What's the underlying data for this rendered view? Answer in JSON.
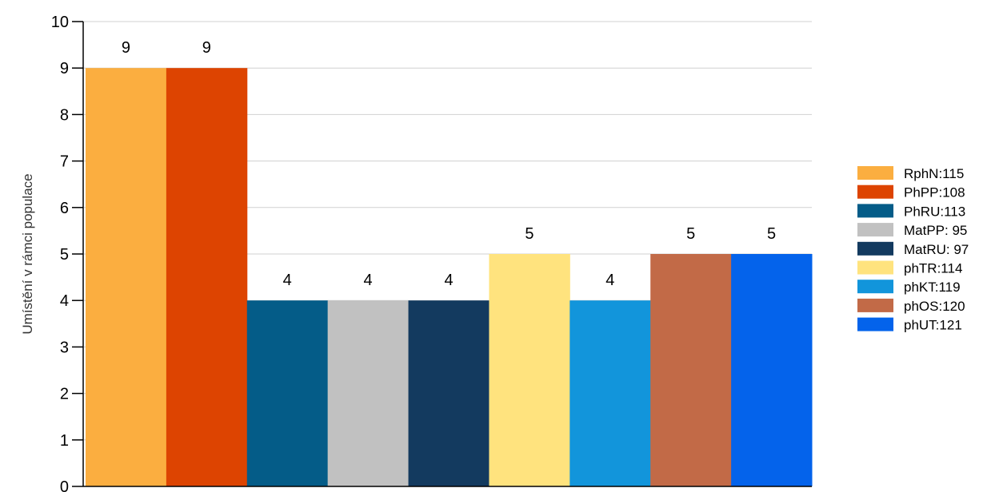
{
  "chart_data": {
    "type": "bar",
    "ylabel": "Umístění v rámci populace",
    "xlabel": "",
    "ylim": [
      0,
      10
    ],
    "yticks": [
      0,
      1,
      2,
      3,
      4,
      5,
      6,
      7,
      8,
      9,
      10
    ],
    "grid": true,
    "legend_position": "right",
    "series": [
      {
        "name": "RphN:115",
        "value": 9,
        "color": "#FBAE40"
      },
      {
        "name": "PhPP:108",
        "value": 9,
        "color": "#DD4401"
      },
      {
        "name": "PhRU:113",
        "value": 4,
        "color": "#045C88"
      },
      {
        "name": "MatPP: 95",
        "value": 4,
        "color": "#C1C1C1"
      },
      {
        "name": "MatRU: 97",
        "value": 4,
        "color": "#133A5F"
      },
      {
        "name": "phTR:114",
        "value": 5,
        "color": "#FFE37E"
      },
      {
        "name": "phKT:119",
        "value": 4,
        "color": "#1295DB"
      },
      {
        "name": "phOS:120",
        "value": 5,
        "color": "#C26A47"
      },
      {
        "name": "phUT:121",
        "value": 5,
        "color": "#0463EB"
      }
    ]
  }
}
